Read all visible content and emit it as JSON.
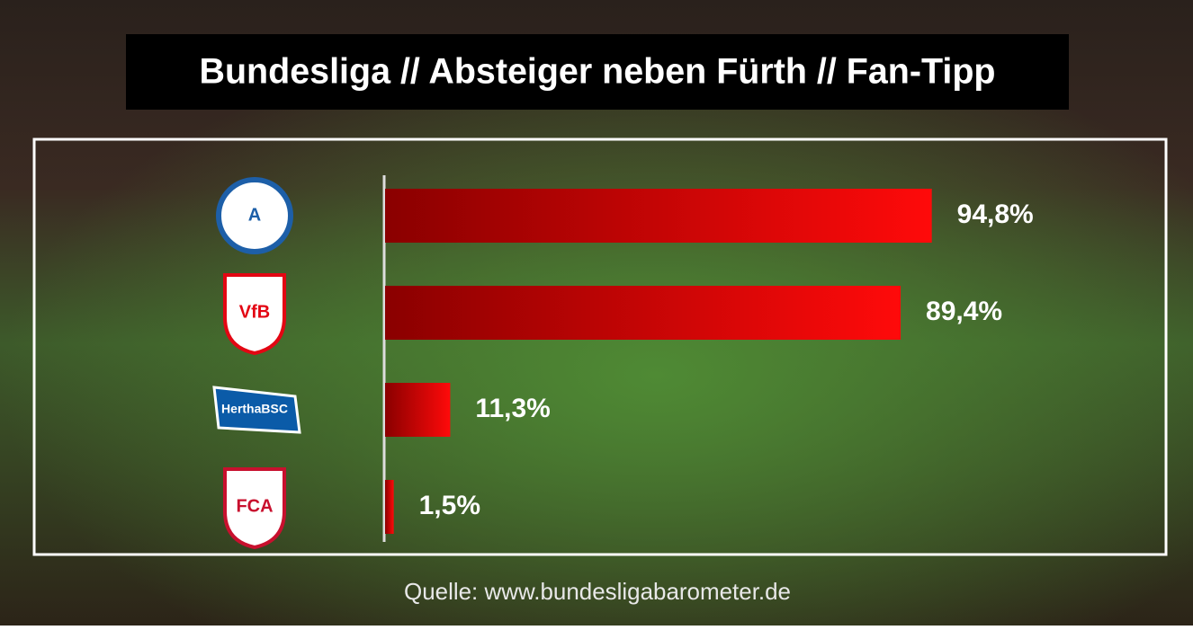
{
  "chart_data": {
    "type": "bar",
    "orientation": "horizontal",
    "title": "Bundesliga // Absteiger neben Fürth // Fan-Tipp",
    "categories": [
      "A",
      "VfB",
      "HerthaBSC",
      "FCA"
    ],
    "values": [
      94.8,
      89.4,
      11.3,
      1.5
    ],
    "value_labels": [
      "94,8%",
      "89,4%",
      "11,3%",
      "1,5%"
    ],
    "xlim": [
      0,
      100
    ],
    "color": "#ff0000",
    "source": "Quelle: www.bundesligabarometer.de"
  }
}
